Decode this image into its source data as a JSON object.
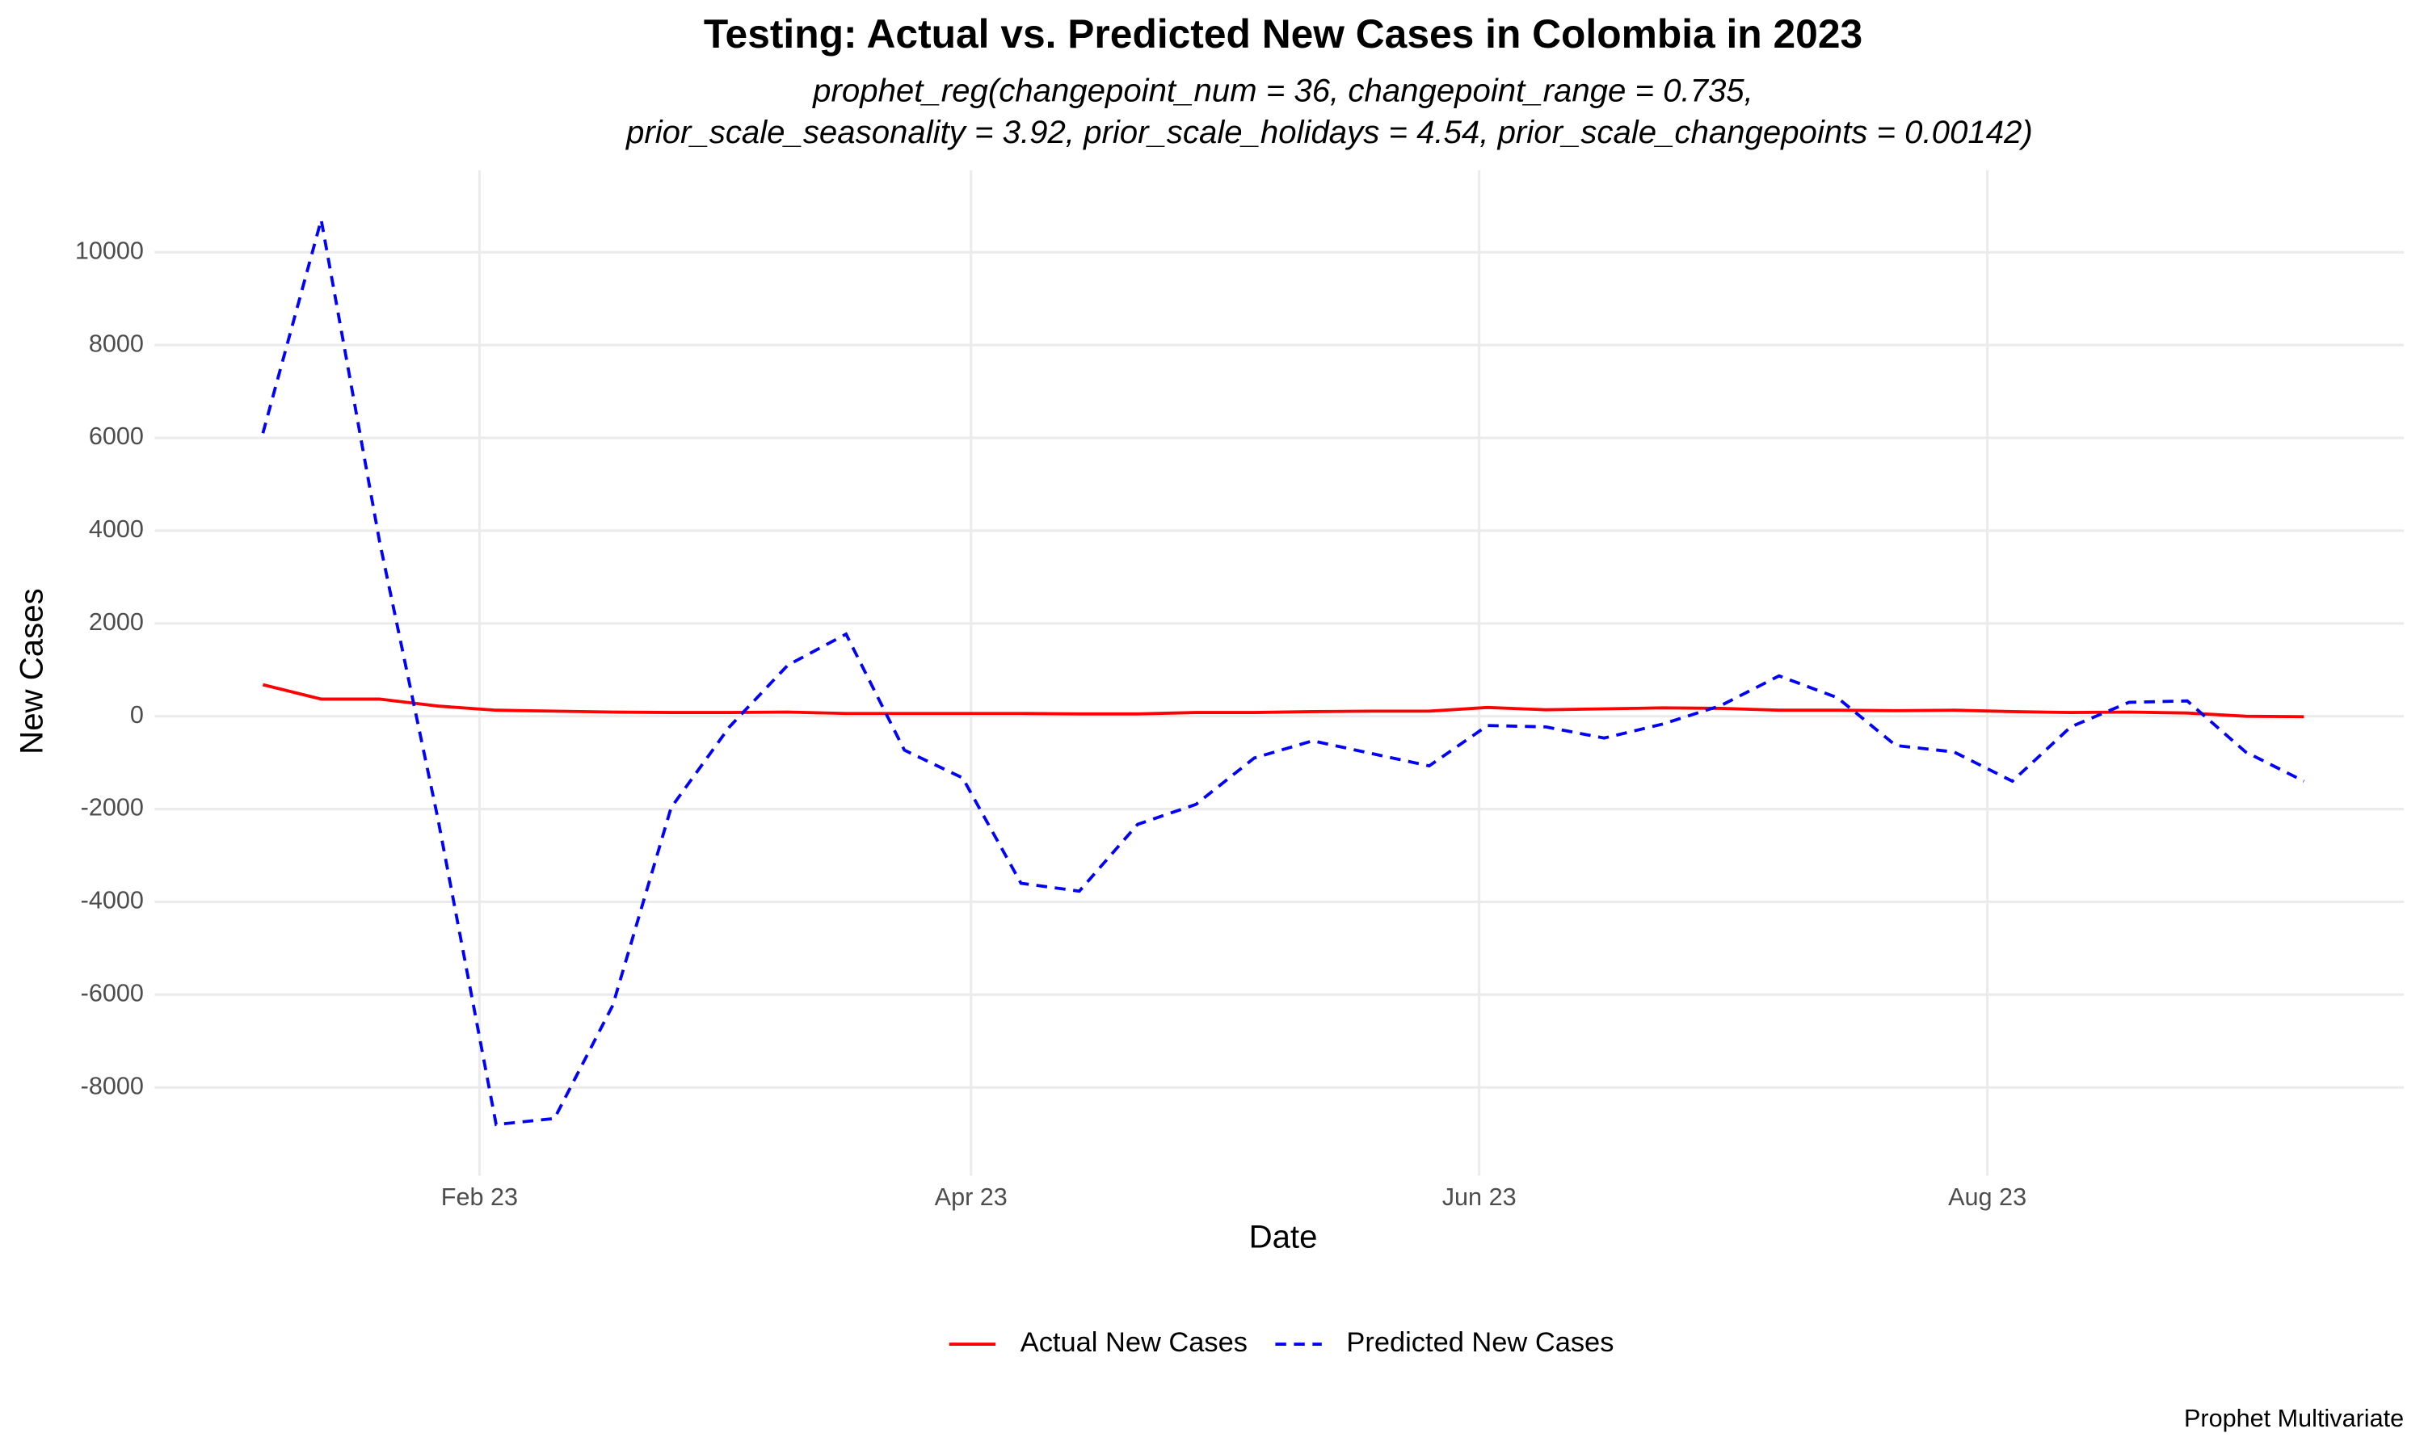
{
  "chart_data": {
    "type": "line",
    "title": "Testing: Actual vs. Predicted New Cases in Colombia in 2023",
    "subtitle": [
      "prophet_reg(changepoint_num = 36, changepoint_range = 0.735,",
      "prior_scale_seasonality = 3.92, prior_scale_holidays = 4.54, prior_scale_changepoints = 0.00142)"
    ],
    "caption": "Prophet Multivariate",
    "x_label": "Date",
    "y_label": "New Cases",
    "x": [
      "2023-01-06",
      "2023-01-13",
      "2023-01-20",
      "2023-01-27",
      "2023-02-03",
      "2023-02-10",
      "2023-02-17",
      "2023-02-24",
      "2023-03-03",
      "2023-03-10",
      "2023-03-17",
      "2023-03-24",
      "2023-03-31",
      "2023-04-07",
      "2023-04-14",
      "2023-04-21",
      "2023-04-28",
      "2023-05-05",
      "2023-05-12",
      "2023-05-19",
      "2023-05-26",
      "2023-06-02",
      "2023-06-09",
      "2023-06-16",
      "2023-06-23",
      "2023-06-30",
      "2023-07-07",
      "2023-07-14",
      "2023-07-21",
      "2023-07-28",
      "2023-08-04",
      "2023-08-11",
      "2023-08-18",
      "2023-08-25",
      "2023-09-01",
      "2023-09-08"
    ],
    "series": [
      {
        "name": "Actual New Cases",
        "color": "#ff0000",
        "dash": "solid",
        "values": [
          680,
          370,
          370,
          220,
          130,
          110,
          90,
          80,
          80,
          90,
          60,
          60,
          60,
          60,
          50,
          50,
          80,
          80,
          100,
          110,
          110,
          190,
          140,
          160,
          180,
          170,
          130,
          130,
          120,
          130,
          100,
          80,
          90,
          70,
          0,
          -10
        ]
      },
      {
        "name": "Predicted New Cases",
        "color": "#0000ff",
        "dash": "dashed",
        "values": [
          6100,
          10700,
          3770,
          -2200,
          -8800,
          -8670,
          -6230,
          -1970,
          -230,
          1100,
          1770,
          -730,
          -1330,
          -3600,
          -3770,
          -2330,
          -1900,
          -900,
          -530,
          -800,
          -1070,
          -200,
          -230,
          -470,
          -170,
          230,
          870,
          400,
          -630,
          -770,
          -1400,
          -230,
          300,
          330,
          -770,
          -1400
        ]
      }
    ],
    "xlim": [
      "2022-12-24",
      "2023-09-20"
    ],
    "xticks": [
      {
        "value": "2023-02-01",
        "label": "Feb 23"
      },
      {
        "value": "2023-04-01",
        "label": "Apr 23"
      },
      {
        "value": "2023-06-01",
        "label": "Jun 23"
      },
      {
        "value": "2023-08-01",
        "label": "Aug 23"
      }
    ],
    "ylim": [
      -9900,
      11770
    ],
    "yticks": [
      -8000,
      -6000,
      -4000,
      -2000,
      0,
      2000,
      4000,
      6000,
      8000,
      10000
    ],
    "grid": true,
    "legend": "bottom"
  }
}
